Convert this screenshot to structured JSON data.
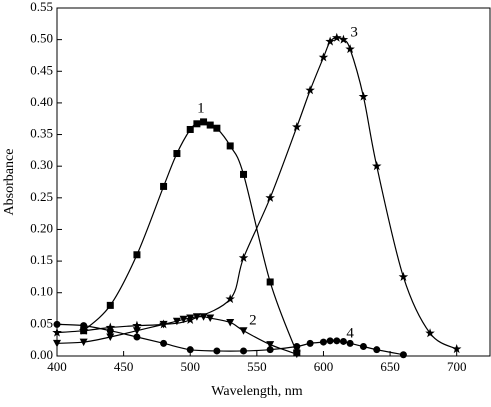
{
  "chart_data": {
    "type": "line",
    "xlabel": "Wavelength, nm",
    "ylabel": "Absorbance",
    "xlim": [
      400,
      725
    ],
    "xticks": [
      400,
      450,
      500,
      550,
      600,
      650,
      700
    ],
    "ylim": [
      0,
      0.55
    ],
    "yticks": [
      {
        "value": 0,
        "label": "0.00"
      },
      {
        "value": 0.05,
        "label": "0.05"
      },
      {
        "value": 0.1,
        "label": "0.10"
      },
      {
        "value": 0.15,
        "label": "0.15"
      },
      {
        "value": 0.2,
        "label": "0.20"
      },
      {
        "value": 0.25,
        "label": "0.25"
      },
      {
        "value": 0.3,
        "label": "0.30"
      },
      {
        "value": 0.35,
        "label": "0.35"
      },
      {
        "value": 0.4,
        "label": "0.40"
      },
      {
        "value": 0.45,
        "label": "0.45"
      },
      {
        "value": 0.5,
        "label": "0.50"
      },
      {
        "value": 0.55,
        "label": "0.55"
      }
    ],
    "series": [
      {
        "color": "#000000",
        "marker": "square",
        "x": [
          420,
          440,
          460,
          480,
          490,
          500,
          505,
          510,
          515,
          520,
          530,
          540,
          560,
          580
        ],
        "values": [
          0.04,
          0.08,
          0.16,
          0.268,
          0.32,
          0.358,
          0.367,
          0.37,
          0.365,
          0.36,
          0.332,
          0.287,
          0.117,
          0.005
        ]
      },
      {
        "color": "#000000",
        "marker": "triangle-down",
        "x": [
          400,
          420,
          440,
          460,
          480,
          490,
          495,
          500,
          505,
          510,
          515,
          530,
          540,
          560,
          580
        ],
        "values": [
          0.02,
          0.022,
          0.03,
          0.04,
          0.05,
          0.055,
          0.058,
          0.06,
          0.062,
          0.062,
          0.06,
          0.053,
          0.04,
          0.018,
          0.003
        ]
      },
      {
        "color": "#000000",
        "marker": "star",
        "x": [
          400,
          420,
          440,
          460,
          480,
          500,
          530,
          540,
          560,
          580,
          590,
          600,
          605,
          610,
          615,
          620,
          630,
          640,
          660,
          680,
          700
        ],
        "values": [
          0.037,
          0.04,
          0.045,
          0.048,
          0.05,
          0.057,
          0.09,
          0.155,
          0.25,
          0.362,
          0.42,
          0.472,
          0.497,
          0.503,
          0.5,
          0.485,
          0.41,
          0.3,
          0.125,
          0.036,
          0.011
        ]
      },
      {
        "color": "#000000",
        "marker": "circle",
        "x": [
          400,
          420,
          440,
          460,
          480,
          500,
          520,
          540,
          560,
          580,
          590,
          600,
          605,
          610,
          615,
          620,
          630,
          640,
          660
        ],
        "values": [
          0.05,
          0.048,
          0.04,
          0.03,
          0.02,
          0.01,
          0.008,
          0.008,
          0.01,
          0.015,
          0.02,
          0.022,
          0.024,
          0.024,
          0.023,
          0.02,
          0.015,
          0.01,
          0.002
        ]
      }
    ],
    "annotations": [
      {
        "text": "1",
        "x": 508,
        "y": 0.39
      },
      {
        "text": "2",
        "x": 547,
        "y": 0.055
      },
      {
        "text": "3",
        "x": 623,
        "y": 0.51
      },
      {
        "text": "4",
        "x": 620,
        "y": 0.035
      }
    ]
  }
}
